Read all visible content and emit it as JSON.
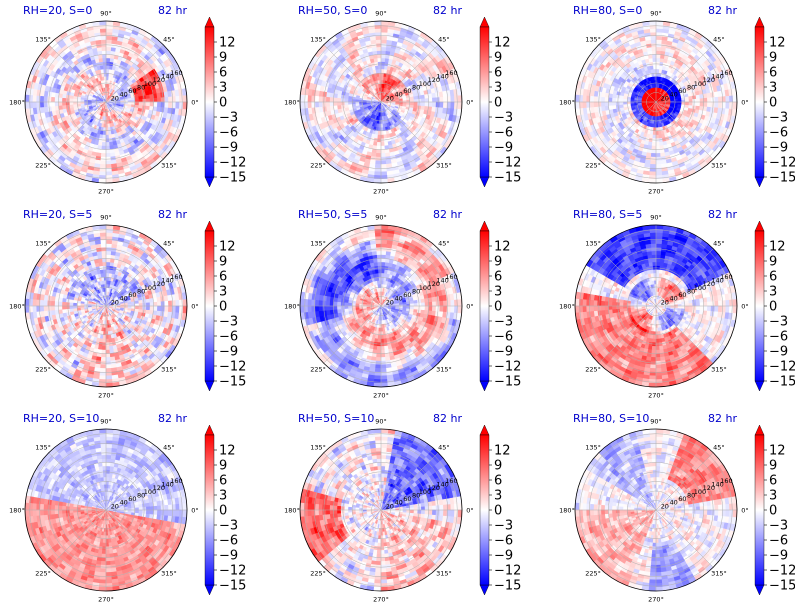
{
  "chart_data": {
    "type": "heatmap",
    "projection": "polar",
    "time_label": "82 hr",
    "angle_ticks": [
      "0°",
      "45°",
      "90°",
      "135°",
      "180°",
      "225°",
      "270°",
      "315°"
    ],
    "radial_ticks": [
      "20",
      "40",
      "60",
      "80",
      "100",
      "120",
      "140",
      "160"
    ],
    "radial_range": [
      0,
      170
    ],
    "colorbar": {
      "colormap": "bwr",
      "range": [
        -15,
        15
      ],
      "ticks": [
        "12",
        "9",
        "6",
        "3",
        "0",
        "−3",
        "−6",
        "−9",
        "−12",
        "−15"
      ],
      "extend": "both"
    },
    "colors": {
      "negative": "#0000ff",
      "neutral": "#ffffff",
      "positive": "#ff0000",
      "title": "#0000cc"
    },
    "panels": [
      {
        "title": "RH=20, S=0",
        "rh": 20,
        "s": 0,
        "pattern": "spiral"
      },
      {
        "title": "RH=50, S=0",
        "rh": 50,
        "s": 0,
        "pattern": "core"
      },
      {
        "title": "RH=80, S=0",
        "rh": 80,
        "s": 0,
        "pattern": "ring"
      },
      {
        "title": "RH=20, S=5",
        "rh": 20,
        "s": 5,
        "pattern": "mottled"
      },
      {
        "title": "RH=50, S=5",
        "rh": 50,
        "s": 5,
        "pattern": "swirl"
      },
      {
        "title": "RH=80, S=5",
        "rh": 80,
        "s": 5,
        "pattern": "ring-south"
      },
      {
        "title": "RH=20, S=10",
        "rh": 20,
        "s": 10,
        "pattern": "halves"
      },
      {
        "title": "RH=50, S=10",
        "rh": 50,
        "s": 10,
        "pattern": "diagonal"
      },
      {
        "title": "RH=80, S=10",
        "rh": 80,
        "s": 10,
        "pattern": "diffuse"
      }
    ]
  }
}
